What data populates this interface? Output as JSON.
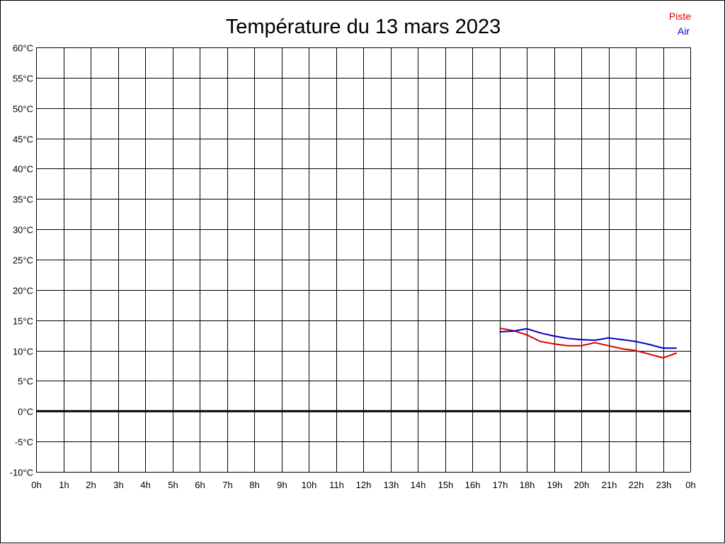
{
  "chart_data": {
    "type": "line",
    "title": "Température du 13 mars 2023",
    "xlabel": "",
    "ylabel": "",
    "x_tick_labels": [
      "0h",
      "1h",
      "2h",
      "3h",
      "4h",
      "5h",
      "6h",
      "7h",
      "8h",
      "9h",
      "10h",
      "11h",
      "12h",
      "13h",
      "14h",
      "15h",
      "16h",
      "17h",
      "18h",
      "19h",
      "20h",
      "21h",
      "22h",
      "23h",
      "0h"
    ],
    "y_tick_labels": [
      "60°C",
      "55°C",
      "50°C",
      "45°C",
      "40°C",
      "35°C",
      "30°C",
      "25°C",
      "20°C",
      "15°C",
      "10°C",
      "5°C",
      "0°C",
      "-5°C",
      "-10°C"
    ],
    "xlim": [
      0,
      24
    ],
    "ylim": [
      -10,
      60
    ],
    "grid": true,
    "legend_position": "top-right",
    "series": [
      {
        "name": "Piste",
        "color": "#dd0000",
        "x": [
          17,
          17.5,
          18,
          18.5,
          19,
          19.5,
          20,
          20.5,
          21,
          21.5,
          22,
          22.5,
          23,
          23.5
        ],
        "y": [
          13.7,
          13.3,
          12.6,
          11.5,
          11.1,
          10.8,
          10.8,
          11.3,
          10.8,
          10.3,
          10.0,
          9.4,
          8.8,
          9.6
        ]
      },
      {
        "name": "Air",
        "color": "#0000cc",
        "x": [
          17,
          17.5,
          18,
          18.5,
          19,
          19.5,
          20,
          20.5,
          21,
          21.5,
          22,
          22.5,
          23,
          23.5
        ],
        "y": [
          13.1,
          13.2,
          13.6,
          12.9,
          12.4,
          12.0,
          11.8,
          11.7,
          12.1,
          11.8,
          11.5,
          11.0,
          10.4,
          10.4
        ]
      }
    ]
  }
}
